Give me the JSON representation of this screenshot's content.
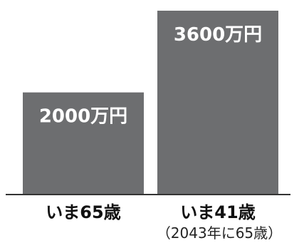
{
  "chart_data": {
    "type": "bar",
    "title": "",
    "xlabel": "",
    "ylabel": "",
    "ylim": [
      0,
      3600
    ],
    "categories": [
      "いま65歳",
      "いま41歳"
    ],
    "category_sublabels": [
      "",
      "（2043年に65歳）"
    ],
    "values": [
      2000,
      3600
    ],
    "value_labels": [
      "2000万円",
      "3600万円"
    ],
    "bar_color": "#6d6e70",
    "grid": false
  }
}
